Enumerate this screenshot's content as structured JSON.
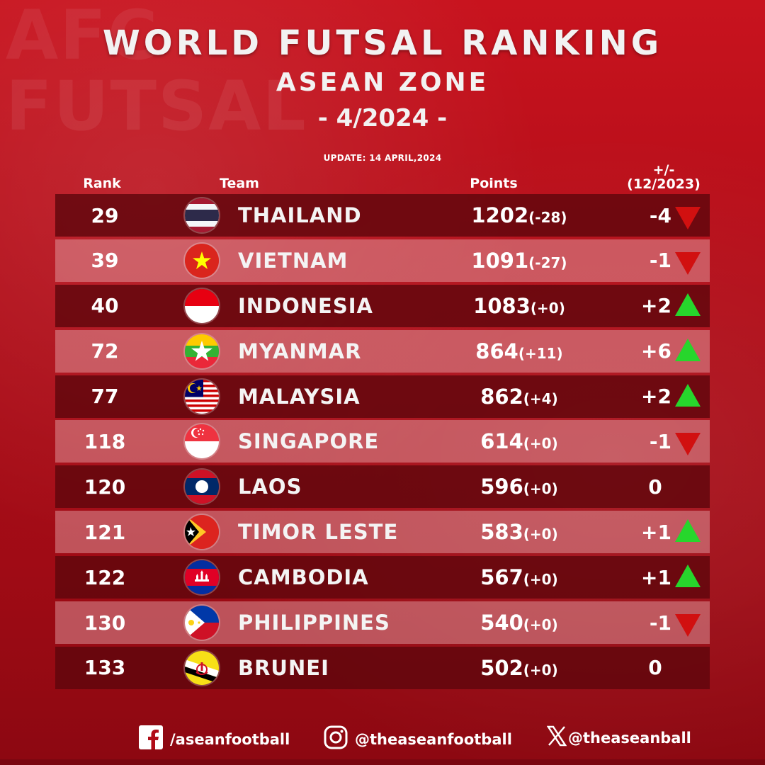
{
  "header": {
    "title": "WORLD FUTSAL RANKING",
    "subtitle": "ASEAN ZONE",
    "period": "- 4/2024 -",
    "update": "UPDATE: 14 APRIL,2024"
  },
  "columns": {
    "rank": "Rank",
    "team": "Team",
    "points": "Points",
    "change_line1": "+/-",
    "change_line2": "(12/2023)"
  },
  "rows": [
    {
      "rank": "29",
      "team": "THAILAND",
      "points": "1202",
      "delta": "(-28)",
      "change": "-4",
      "trend": "down",
      "flag": "thailand-flag"
    },
    {
      "rank": "39",
      "team": "VIETNAM",
      "points": "1091",
      "delta": "(-27)",
      "change": "-1",
      "trend": "down",
      "flag": "vietnam-flag"
    },
    {
      "rank": "40",
      "team": "INDONESIA",
      "points": "1083",
      "delta": "(+0)",
      "change": "+2",
      "trend": "up",
      "flag": "indonesia-flag"
    },
    {
      "rank": "72",
      "team": "MYANMAR",
      "points": "864",
      "delta": "(+11)",
      "change": "+6",
      "trend": "up",
      "flag": "myanmar-flag"
    },
    {
      "rank": "77",
      "team": "MALAYSIA",
      "points": "862",
      "delta": "(+4)",
      "change": "+2",
      "trend": "up",
      "flag": "malaysia-flag"
    },
    {
      "rank": "118",
      "team": "SINGAPORE",
      "points": "614",
      "delta": "(+0)",
      "change": "-1",
      "trend": "down",
      "flag": "singapore-flag"
    },
    {
      "rank": "120",
      "team": "LAOS",
      "points": "596",
      "delta": "(+0)",
      "change": "0",
      "trend": "none",
      "flag": "laos-flag"
    },
    {
      "rank": "121",
      "team": "TIMOR LESTE",
      "points": "583",
      "delta": "(+0)",
      "change": "+1",
      "trend": "up",
      "flag": "timor-leste-flag"
    },
    {
      "rank": "122",
      "team": "CAMBODIA",
      "points": "567",
      "delta": "(+0)",
      "change": "+1",
      "trend": "up",
      "flag": "cambodia-flag"
    },
    {
      "rank": "130",
      "team": "PHILIPPINES",
      "points": "540",
      "delta": "(+0)",
      "change": "-1",
      "trend": "down",
      "flag": "philippines-flag"
    },
    {
      "rank": "133",
      "team": "BRUNEI",
      "points": "502",
      "delta": "(+0)",
      "change": "0",
      "trend": "none",
      "flag": "brunei-flag"
    }
  ],
  "footer": {
    "facebook": "/aseanfootball",
    "instagram": "@theaseanfootball",
    "x": "@theaseanball"
  },
  "background_text": "AFC FUTSAL",
  "colors": {
    "background": "#b10d18",
    "row_dark": "#5f060c",
    "row_light": "#e6aaaf",
    "arrow_up": "#27d62c",
    "arrow_down": "#d11010"
  }
}
